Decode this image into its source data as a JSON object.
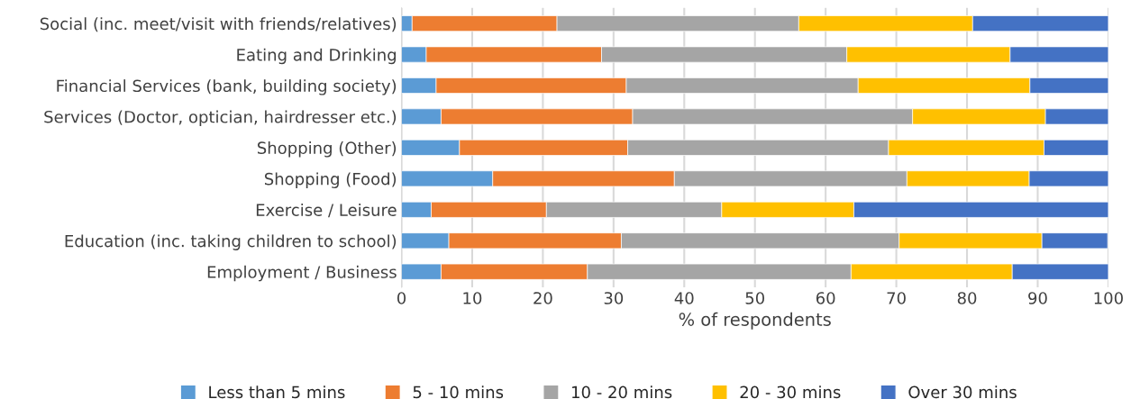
{
  "chart_data": {
    "type": "bar",
    "orientation": "horizontal",
    "stacked": true,
    "xlabel": "% of respondents",
    "categories": [
      "Social (inc. meet/visit with friends/relatives)",
      "Eating and Drinking",
      "Financial Services (bank, building society)",
      "Services (Doctor, optician, hairdresser etc.)",
      "Shopping (Other)",
      "Shopping (Food)",
      "Exercise / Leisure",
      "Education (inc. taking children to school)",
      "Employment / Business"
    ],
    "series": [
      {
        "name": "Less than 5 mins",
        "color": "#5b9bd5",
        "values": [
          1.5,
          3.5,
          4.9,
          5.6,
          8.2,
          12.9,
          4.2,
          6.7,
          5.6
        ]
      },
      {
        "name": "5 - 10 mins",
        "color": "#ed7d31",
        "values": [
          20.5,
          24.8,
          26.9,
          27.1,
          23.8,
          25.7,
          16.3,
          24.4,
          20.7
        ]
      },
      {
        "name": "10 - 20 mins",
        "color": "#a5a5a5",
        "values": [
          34.2,
          34.7,
          32.8,
          39.6,
          36.9,
          32.9,
          24.8,
          39.3,
          37.3
        ]
      },
      {
        "name": "20 - 30 mins",
        "color": "#ffc000",
        "values": [
          24.6,
          23.1,
          24.3,
          18.8,
          22.0,
          17.3,
          18.7,
          20.2,
          22.8
        ]
      },
      {
        "name": "Over 30 mins",
        "color": "#4472c4",
        "values": [
          19.2,
          13.9,
          11.1,
          8.9,
          9.1,
          11.2,
          36.0,
          9.3,
          13.6
        ]
      }
    ],
    "xlim": [
      0,
      100
    ],
    "xticks": [
      0,
      10,
      20,
      30,
      40,
      50,
      60,
      70,
      80,
      90,
      100
    ],
    "grid": "x",
    "legend": "bottom"
  }
}
